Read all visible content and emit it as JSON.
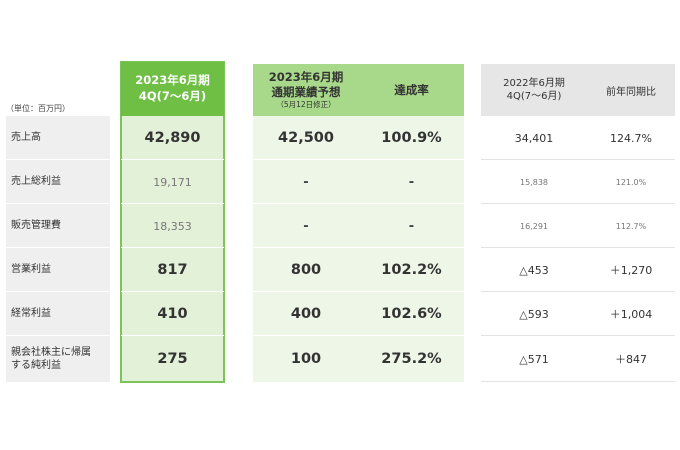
{
  "unit_label": "（単位：百万円）",
  "headers": {
    "current_line1": "2023年6月期",
    "current_line2": "4Q(7～6月)",
    "forecast_line1": "2023年6月期",
    "forecast_line2": "通期業績予想",
    "forecast_note": "（5月12日修正）",
    "achievement": "達成率",
    "prior_line1": "2022年6月期",
    "prior_line2": "4Q(7～6月)",
    "yoy": "前年同期比"
  },
  "rows": [
    {
      "label": "売上高",
      "current": "42,890",
      "forecast": "42,500",
      "achievement": "100.9%",
      "prior": "34,401",
      "yoy": "124.7%"
    },
    {
      "label": "売上総利益",
      "current": "19,171",
      "forecast": "-",
      "achievement": "-",
      "prior": "15,838",
      "yoy": "121.0%"
    },
    {
      "label": "販売管理費",
      "current": "18,353",
      "forecast": "-",
      "achievement": "-",
      "prior": "16,291",
      "yoy": "112.7%"
    },
    {
      "label": "営業利益",
      "current": "817",
      "forecast": "800",
      "achievement": "102.2%",
      "prior": "△453",
      "yoy": "＋1,270"
    },
    {
      "label": "経常利益",
      "current": "410",
      "forecast": "400",
      "achievement": "102.6%",
      "prior": "△593",
      "yoy": "＋1,004"
    },
    {
      "label_line1": "親会社株主に帰属",
      "label_line2": "する純利益",
      "current": "275",
      "forecast": "100",
      "achievement": "275.2%",
      "prior": "△571",
      "yoy": "＋847"
    }
  ],
  "colors": {
    "accent_green": "#6fbf45",
    "light_green": "#a8d98a",
    "pale_green": "#e4f1d9",
    "grey": "#efefef"
  }
}
